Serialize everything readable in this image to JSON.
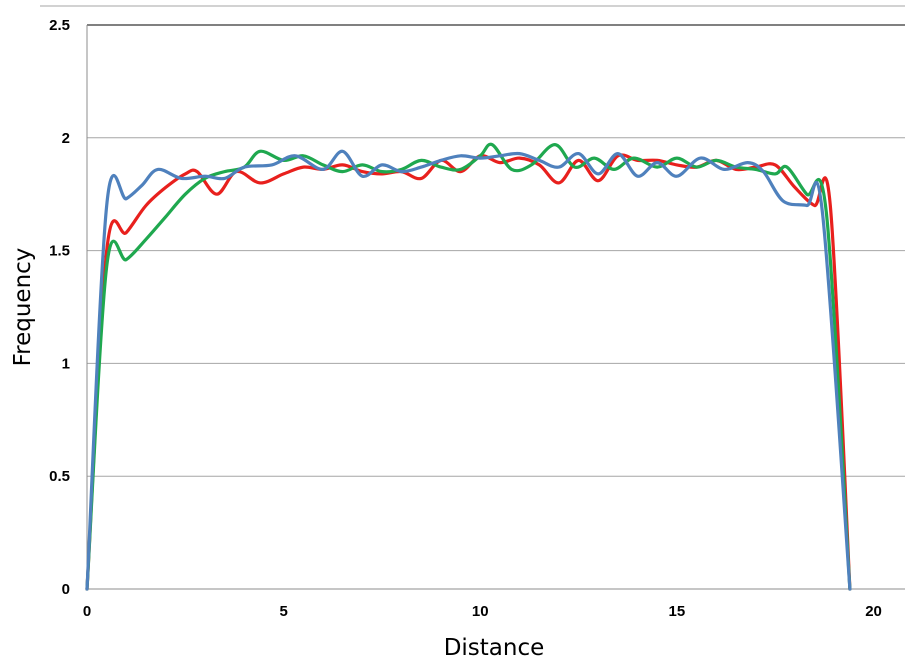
{
  "chart_data": {
    "type": "line",
    "title": "",
    "xlabel": "Distance",
    "ylabel": "Frequency",
    "xlim": [
      0,
      20.8
    ],
    "ylim": [
      0,
      2.5
    ],
    "x_ticks": [
      "0",
      "5",
      "10",
      "15",
      "20"
    ],
    "x_tick_values": [
      0,
      5,
      10,
      15,
      20
    ],
    "y_ticks": [
      "0",
      "0.5",
      "1",
      "1.5",
      "2",
      "2.5"
    ],
    "y_tick_values": [
      0,
      0.5,
      1,
      1.5,
      2,
      2.5
    ],
    "grid": true,
    "legend": "none",
    "series": [
      {
        "color": "#e8201d",
        "points": [
          [
            0,
            0
          ],
          [
            0.5,
            1.5
          ],
          [
            1,
            1.58
          ],
          [
            1.5,
            1.7
          ],
          [
            2,
            1.78
          ],
          [
            2.5,
            1.84
          ],
          [
            2.8,
            1.85
          ],
          [
            3.3,
            1.75
          ],
          [
            3.8,
            1.85
          ],
          [
            4.4,
            1.8
          ],
          [
            5,
            1.84
          ],
          [
            5.5,
            1.87
          ],
          [
            6,
            1.86
          ],
          [
            6.5,
            1.88
          ],
          [
            7,
            1.85
          ],
          [
            7.5,
            1.84
          ],
          [
            8,
            1.85
          ],
          [
            8.5,
            1.82
          ],
          [
            9,
            1.9
          ],
          [
            9.5,
            1.85
          ],
          [
            10,
            1.92
          ],
          [
            10.5,
            1.89
          ],
          [
            11,
            1.91
          ],
          [
            11.5,
            1.88
          ],
          [
            12,
            1.8
          ],
          [
            12.5,
            1.9
          ],
          [
            13,
            1.81
          ],
          [
            13.5,
            1.92
          ],
          [
            14,
            1.9
          ],
          [
            14.5,
            1.9
          ],
          [
            15,
            1.88
          ],
          [
            15.5,
            1.87
          ],
          [
            16,
            1.9
          ],
          [
            16.5,
            1.86
          ],
          [
            17,
            1.87
          ],
          [
            17.5,
            1.88
          ],
          [
            18,
            1.78
          ],
          [
            18.5,
            1.7
          ],
          [
            18.9,
            1.7
          ],
          [
            19.4,
            0
          ]
        ]
      },
      {
        "color": "#1fa84f",
        "points": [
          [
            0,
            0
          ],
          [
            0.5,
            1.43
          ],
          [
            1,
            1.46
          ],
          [
            1.5,
            1.55
          ],
          [
            2,
            1.65
          ],
          [
            2.5,
            1.75
          ],
          [
            3,
            1.82
          ],
          [
            3.5,
            1.85
          ],
          [
            4,
            1.87
          ],
          [
            4.4,
            1.94
          ],
          [
            5,
            1.9
          ],
          [
            5.5,
            1.92
          ],
          [
            6,
            1.88
          ],
          [
            6.5,
            1.85
          ],
          [
            7,
            1.88
          ],
          [
            7.5,
            1.85
          ],
          [
            8,
            1.86
          ],
          [
            8.5,
            1.9
          ],
          [
            9,
            1.87
          ],
          [
            9.5,
            1.86
          ],
          [
            10,
            1.92
          ],
          [
            10.3,
            1.97
          ],
          [
            10.8,
            1.86
          ],
          [
            11.3,
            1.88
          ],
          [
            11.9,
            1.97
          ],
          [
            12.4,
            1.87
          ],
          [
            12.9,
            1.91
          ],
          [
            13.4,
            1.86
          ],
          [
            13.9,
            1.91
          ],
          [
            14.5,
            1.87
          ],
          [
            15,
            1.91
          ],
          [
            15.5,
            1.87
          ],
          [
            16,
            1.9
          ],
          [
            16.5,
            1.87
          ],
          [
            17,
            1.86
          ],
          [
            17.5,
            1.84
          ],
          [
            17.8,
            1.87
          ],
          [
            18.3,
            1.75
          ],
          [
            18.8,
            1.67
          ],
          [
            19.4,
            0
          ]
        ]
      },
      {
        "color": "#4f81bd",
        "points": [
          [
            0,
            0
          ],
          [
            0.5,
            1.7
          ],
          [
            1,
            1.73
          ],
          [
            1.4,
            1.79
          ],
          [
            1.8,
            1.86
          ],
          [
            2.4,
            1.82
          ],
          [
            3,
            1.83
          ],
          [
            3.5,
            1.82
          ],
          [
            4,
            1.87
          ],
          [
            4.7,
            1.88
          ],
          [
            5.3,
            1.92
          ],
          [
            6,
            1.86
          ],
          [
            6.5,
            1.94
          ],
          [
            7,
            1.83
          ],
          [
            7.5,
            1.88
          ],
          [
            8,
            1.85
          ],
          [
            8.5,
            1.87
          ],
          [
            9,
            1.9
          ],
          [
            9.5,
            1.92
          ],
          [
            10,
            1.91
          ],
          [
            10.5,
            1.92
          ],
          [
            11,
            1.93
          ],
          [
            11.5,
            1.9
          ],
          [
            12,
            1.87
          ],
          [
            12.5,
            1.93
          ],
          [
            13,
            1.84
          ],
          [
            13.5,
            1.93
          ],
          [
            14,
            1.83
          ],
          [
            14.5,
            1.89
          ],
          [
            15,
            1.83
          ],
          [
            15.6,
            1.91
          ],
          [
            16.2,
            1.86
          ],
          [
            16.8,
            1.89
          ],
          [
            17.2,
            1.85
          ],
          [
            17.7,
            1.72
          ],
          [
            18.3,
            1.7
          ],
          [
            18.7,
            1.67
          ],
          [
            19.4,
            0
          ]
        ]
      }
    ]
  }
}
